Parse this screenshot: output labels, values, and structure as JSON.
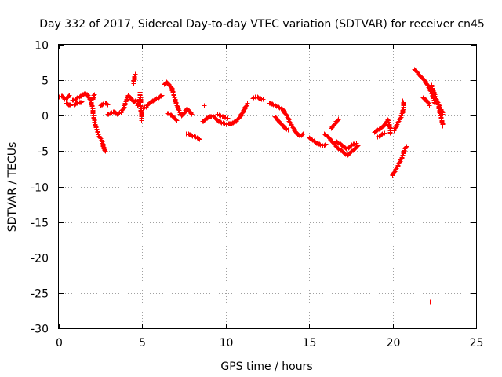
{
  "chart_data": {
    "type": "scatter",
    "title": "Day 332 of 2017, Sidereal Day-to-day VTEC variation (SDTVAR) for receiver cn45",
    "xlabel": "GPS time / hours",
    "ylabel": "SDTVAR / TECUs",
    "xlim": [
      0,
      25
    ],
    "ylim": [
      -30,
      10
    ],
    "x_ticks": [
      0,
      5,
      10,
      15,
      20,
      25
    ],
    "y_ticks": [
      10,
      5,
      0,
      -5,
      -10,
      -15,
      -20,
      -25,
      -30
    ],
    "x_tick_labels": [
      "0",
      "5",
      "10",
      "15",
      "20",
      "25"
    ],
    "y_tick_labels": [
      "10",
      "5",
      "0",
      "-5",
      "-10",
      "-15",
      "-20",
      "-25",
      "-30"
    ],
    "grid": true,
    "marker": "+",
    "series_color": "#ff0000",
    "segments": [
      {
        "name": "arc-01",
        "points": [
          [
            0.0,
            2.7
          ],
          [
            0.2,
            2.8
          ],
          [
            0.35,
            2.4
          ],
          [
            0.5,
            2.6
          ],
          [
            0.6,
            2.9
          ]
        ]
      },
      {
        "name": "arc-02",
        "points": [
          [
            0.4,
            1.8
          ],
          [
            0.55,
            1.6
          ],
          [
            0.7,
            1.5
          ]
        ]
      },
      {
        "name": "arc-03",
        "points": [
          [
            0.8,
            2.2
          ],
          [
            1.0,
            2.4
          ],
          [
            1.2,
            2.7
          ],
          [
            1.4,
            3.0
          ],
          [
            1.55,
            3.2
          ],
          [
            1.7,
            3.0
          ],
          [
            1.8,
            2.6
          ],
          [
            1.9,
            2.1
          ],
          [
            2.0,
            1.0
          ],
          [
            2.05,
            0.0
          ],
          [
            2.15,
            -1.0
          ],
          [
            2.25,
            -2.0
          ],
          [
            2.4,
            -2.8
          ],
          [
            2.55,
            -3.5
          ],
          [
            2.65,
            -4.3
          ],
          [
            2.75,
            -5.0
          ]
        ]
      },
      {
        "name": "arc-04",
        "points": [
          [
            0.9,
            1.6
          ],
          [
            1.05,
            1.8
          ],
          [
            1.2,
            1.9
          ],
          [
            1.35,
            2.0
          ]
        ]
      },
      {
        "name": "arc-05",
        "points": [
          [
            2.0,
            2.3
          ],
          [
            2.05,
            2.6
          ],
          [
            2.1,
            3.0
          ]
        ]
      },
      {
        "name": "arc-06",
        "points": [
          [
            2.5,
            1.5
          ],
          [
            2.65,
            1.7
          ],
          [
            2.8,
            1.8
          ],
          [
            2.9,
            1.6
          ]
        ]
      },
      {
        "name": "arc-07",
        "points": [
          [
            2.9,
            0.2
          ],
          [
            3.1,
            0.4
          ],
          [
            3.3,
            0.6
          ],
          [
            3.5,
            0.3
          ],
          [
            3.7,
            0.5
          ],
          [
            3.85,
            1.0
          ],
          [
            3.95,
            1.7
          ],
          [
            4.05,
            2.4
          ],
          [
            4.15,
            2.9
          ],
          [
            4.3,
            2.5
          ],
          [
            4.45,
            2.0
          ],
          [
            4.6,
            2.2
          ]
        ]
      },
      {
        "name": "arc-08",
        "points": [
          [
            4.45,
            4.6
          ],
          [
            4.5,
            5.3
          ],
          [
            4.55,
            5.9
          ]
        ]
      },
      {
        "name": "arc-09",
        "points": [
          [
            4.7,
            1.5
          ],
          [
            4.8,
            2.0
          ],
          [
            4.85,
            3.4
          ],
          [
            4.9,
            1.0
          ],
          [
            4.95,
            -0.6
          ]
        ]
      },
      {
        "name": "arc-10",
        "points": [
          [
            4.95,
            1.0
          ],
          [
            5.2,
            1.3
          ],
          [
            5.4,
            1.8
          ],
          [
            5.6,
            2.1
          ],
          [
            5.8,
            2.4
          ],
          [
            6.0,
            2.7
          ],
          [
            6.15,
            2.9
          ]
        ]
      },
      {
        "name": "arc-11",
        "points": [
          [
            6.3,
            4.5
          ],
          [
            6.45,
            4.8
          ],
          [
            6.6,
            4.4
          ],
          [
            6.75,
            3.9
          ],
          [
            6.85,
            3.2
          ],
          [
            6.95,
            2.2
          ],
          [
            7.05,
            1.5
          ],
          [
            7.15,
            0.9
          ],
          [
            7.25,
            0.3
          ],
          [
            7.35,
            0.0
          ],
          [
            7.5,
            0.5
          ],
          [
            7.65,
            1.0
          ],
          [
            7.8,
            0.7
          ],
          [
            7.95,
            0.2
          ]
        ]
      },
      {
        "name": "arc-12",
        "points": [
          [
            6.5,
            0.4
          ],
          [
            6.7,
            0.1
          ],
          [
            6.9,
            -0.3
          ],
          [
            7.05,
            -0.6
          ]
        ]
      },
      {
        "name": "arc-13",
        "points": [
          [
            7.6,
            -2.5
          ],
          [
            7.8,
            -2.6
          ],
          [
            8.0,
            -2.8
          ],
          [
            8.2,
            -3.0
          ],
          [
            8.4,
            -3.3
          ]
        ]
      },
      {
        "name": "arc-14",
        "points": [
          [
            8.7,
            1.5
          ]
        ]
      },
      {
        "name": "arc-15",
        "points": [
          [
            8.6,
            -0.8
          ],
          [
            8.8,
            -0.4
          ],
          [
            9.0,
            -0.1
          ],
          [
            9.2,
            0.0
          ],
          [
            9.4,
            -0.4
          ],
          [
            9.6,
            -0.8
          ],
          [
            9.8,
            -1.0
          ],
          [
            10.0,
            -1.2
          ],
          [
            10.2,
            -1.1
          ],
          [
            10.4,
            -1.0
          ],
          [
            10.6,
            -0.7
          ],
          [
            10.8,
            -0.2
          ],
          [
            11.0,
            0.5
          ],
          [
            11.15,
            1.2
          ],
          [
            11.3,
            1.8
          ]
        ]
      },
      {
        "name": "arc-16",
        "points": [
          [
            9.5,
            0.2
          ],
          [
            9.7,
            0.0
          ],
          [
            9.9,
            -0.2
          ],
          [
            10.1,
            -0.3
          ]
        ]
      },
      {
        "name": "arc-17",
        "points": [
          [
            11.6,
            2.5
          ],
          [
            11.8,
            2.7
          ],
          [
            12.0,
            2.5
          ],
          [
            12.2,
            2.3
          ]
        ]
      },
      {
        "name": "arc-18",
        "points": [
          [
            12.6,
            1.8
          ],
          [
            12.85,
            1.6
          ],
          [
            13.1,
            1.3
          ],
          [
            13.35,
            1.0
          ],
          [
            13.55,
            0.4
          ],
          [
            13.7,
            -0.3
          ],
          [
            13.85,
            -1.0
          ],
          [
            14.0,
            -1.6
          ],
          [
            14.15,
            -2.2
          ],
          [
            14.3,
            -2.6
          ],
          [
            14.45,
            -2.8
          ],
          [
            14.6,
            -2.5
          ]
        ]
      },
      {
        "name": "arc-19",
        "points": [
          [
            12.9,
            -0.1
          ],
          [
            13.1,
            -0.6
          ],
          [
            13.3,
            -1.1
          ],
          [
            13.5,
            -1.6
          ],
          [
            13.7,
            -2.0
          ]
        ]
      },
      {
        "name": "arc-20",
        "points": [
          [
            15.0,
            -3.1
          ],
          [
            15.2,
            -3.4
          ],
          [
            15.4,
            -3.8
          ],
          [
            15.6,
            -4.0
          ],
          [
            15.8,
            -4.2
          ],
          [
            16.0,
            -4.0
          ]
        ]
      },
      {
        "name": "arc-21",
        "points": [
          [
            15.9,
            -2.5
          ],
          [
            16.05,
            -2.8
          ],
          [
            16.2,
            -3.2
          ],
          [
            16.35,
            -3.6
          ],
          [
            16.5,
            -4.0
          ],
          [
            16.7,
            -4.5
          ],
          [
            16.9,
            -4.9
          ],
          [
            17.1,
            -5.3
          ],
          [
            17.3,
            -5.5
          ],
          [
            17.5,
            -5.1
          ],
          [
            17.7,
            -4.6
          ],
          [
            17.9,
            -4.2
          ]
        ]
      },
      {
        "name": "arc-22",
        "points": [
          [
            16.3,
            -1.8
          ],
          [
            16.45,
            -1.3
          ],
          [
            16.6,
            -0.8
          ],
          [
            16.75,
            -0.4
          ]
        ]
      },
      {
        "name": "arc-23",
        "points": [
          [
            16.6,
            -3.5
          ],
          [
            16.8,
            -3.9
          ],
          [
            17.0,
            -4.3
          ],
          [
            17.2,
            -4.6
          ],
          [
            17.4,
            -4.4
          ],
          [
            17.6,
            -4.0
          ],
          [
            17.8,
            -3.8
          ]
        ]
      },
      {
        "name": "arc-24",
        "points": [
          [
            18.9,
            -2.3
          ],
          [
            19.1,
            -2.0
          ],
          [
            19.3,
            -1.6
          ],
          [
            19.5,
            -1.3
          ],
          [
            19.6,
            -0.9
          ],
          [
            19.7,
            -0.5
          ],
          [
            19.8,
            -1.5
          ],
          [
            19.85,
            -2.4
          ]
        ]
      },
      {
        "name": "arc-25",
        "points": [
          [
            19.1,
            -3.0
          ],
          [
            19.3,
            -2.6
          ],
          [
            19.5,
            -2.4
          ]
        ]
      },
      {
        "name": "arc-26",
        "points": [
          [
            19.95,
            -8.4
          ],
          [
            20.1,
            -7.8
          ],
          [
            20.25,
            -7.2
          ],
          [
            20.4,
            -6.5
          ],
          [
            20.55,
            -5.8
          ],
          [
            20.7,
            -4.8
          ],
          [
            20.8,
            -4.3
          ]
        ]
      },
      {
        "name": "arc-27",
        "points": [
          [
            20.05,
            -2.1
          ],
          [
            20.2,
            -1.5
          ],
          [
            20.35,
            -0.7
          ],
          [
            20.5,
            0.0
          ],
          [
            20.6,
            0.8
          ],
          [
            20.65,
            1.6
          ],
          [
            20.6,
            2.1
          ]
        ]
      },
      {
        "name": "arc-28",
        "points": [
          [
            21.3,
            6.6
          ],
          [
            21.55,
            5.8
          ],
          [
            21.8,
            5.2
          ],
          [
            22.05,
            4.5
          ],
          [
            22.25,
            3.6
          ],
          [
            22.4,
            2.6
          ],
          [
            22.5,
            1.8
          ]
        ]
      },
      {
        "name": "arc-29",
        "points": [
          [
            21.8,
            2.6
          ],
          [
            22.0,
            2.2
          ],
          [
            22.2,
            1.5
          ]
        ]
      },
      {
        "name": "arc-30",
        "points": [
          [
            22.3,
            4.4
          ],
          [
            22.45,
            3.3
          ],
          [
            22.6,
            2.2
          ],
          [
            22.75,
            1.2
          ],
          [
            22.85,
            0.0
          ],
          [
            22.95,
            -0.9
          ],
          [
            23.0,
            -1.4
          ]
        ]
      },
      {
        "name": "arc-31",
        "points": [
          [
            22.6,
            2.3
          ],
          [
            22.75,
            1.6
          ],
          [
            22.9,
            0.8
          ],
          [
            23.0,
            0.3
          ]
        ]
      },
      {
        "name": "outlier",
        "points": [
          [
            22.25,
            -26.2
          ]
        ]
      }
    ]
  }
}
